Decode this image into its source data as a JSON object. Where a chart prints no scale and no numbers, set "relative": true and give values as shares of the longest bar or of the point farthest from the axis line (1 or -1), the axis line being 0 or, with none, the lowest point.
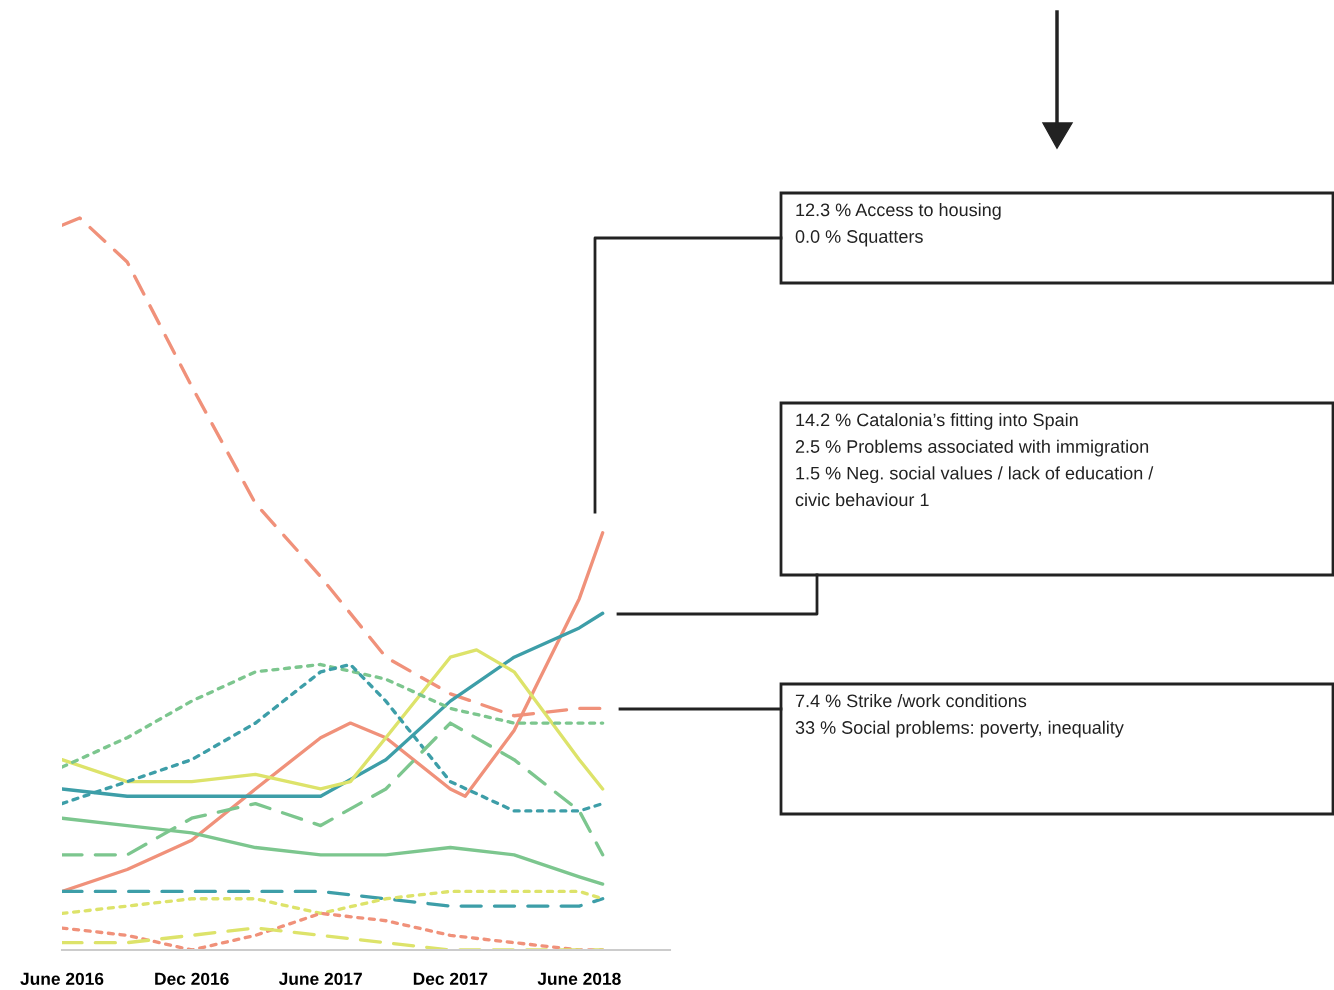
{
  "chart_data": {
    "type": "line",
    "relative": true,
    "grid": false,
    "legend": false,
    "xlim": [
      "2016-06-01",
      "2018-10-07"
    ],
    "xticks": [
      {
        "value": "2016-06",
        "label": "June 2016"
      },
      {
        "value": "2016-12",
        "label": "Dec 2016"
      },
      {
        "value": "2017-06",
        "label": "June 2017"
      },
      {
        "value": "2017-12",
        "label": "Dec 2017"
      },
      {
        "value": "2018-06",
        "label": "June 2018"
      }
    ],
    "tick_labels": "x",
    "series": [
      {
        "color": "#f0917a",
        "line_style": "dashed",
        "x": [
          "2016-06-01",
          "2016-06-26",
          "2016-09-01",
          "2016-12-01",
          "2017-03-01",
          "2017-06-01",
          "2017-09-01",
          "2017-12-01",
          "2018-03-01",
          "2018-06-01",
          "2018-07-04"
        ],
        "values": [
          0.99,
          1,
          0.94,
          0.77,
          0.61,
          0.51,
          0.4,
          0.35,
          0.32,
          0.33,
          0.33
        ]
      },
      {
        "color": "#f0917a",
        "line_style": "solid",
        "x": [
          "2016-06-01",
          "2016-09-01",
          "2016-12-01",
          "2017-03-01",
          "2017-06-01",
          "2017-07-13",
          "2017-09-01",
          "2017-12-01",
          "2017-12-22",
          "2018-03-01",
          "2018-06-01",
          "2018-07-04"
        ],
        "values": [
          0.08,
          0.11,
          0.15,
          0.22,
          0.29,
          0.31,
          0.29,
          0.22,
          0.21,
          0.3,
          0.48,
          0.57
        ]
      },
      {
        "color": "#3d9ea8",
        "line_style": "solid",
        "x": [
          "2016-06-01",
          "2016-09-01",
          "2016-12-01",
          "2017-03-01",
          "2017-06-01",
          "2017-09-01",
          "2017-12-01",
          "2018-03-01",
          "2018-06-01",
          "2018-07-04"
        ],
        "values": [
          0.22,
          0.21,
          0.21,
          0.21,
          0.21,
          0.26,
          0.34,
          0.4,
          0.44,
          0.46
        ]
      },
      {
        "color": "#dde36a",
        "line_style": "solid",
        "x": [
          "2016-06-01",
          "2016-09-01",
          "2016-12-01",
          "2017-03-01",
          "2017-06-01",
          "2017-07-13",
          "2017-09-01",
          "2017-12-01",
          "2018-01-07",
          "2018-03-01",
          "2018-06-01",
          "2018-07-04"
        ],
        "values": [
          0.26,
          0.23,
          0.23,
          0.24,
          0.22,
          0.23,
          0.29,
          0.4,
          0.41,
          0.38,
          0.26,
          0.22
        ]
      },
      {
        "color": "#7cc68e",
        "line_style": "dotted",
        "x": [
          "2016-06-01",
          "2016-09-01",
          "2016-12-01",
          "2017-03-01",
          "2017-06-01",
          "2017-09-01",
          "2017-12-01",
          "2018-03-01",
          "2018-06-01",
          "2018-07-04"
        ],
        "values": [
          0.25,
          0.29,
          0.34,
          0.38,
          0.39,
          0.37,
          0.33,
          0.31,
          0.31,
          0.31
        ]
      },
      {
        "color": "#3d9ea8",
        "line_style": "dotted",
        "x": [
          "2016-06-01",
          "2016-09-01",
          "2016-12-01",
          "2017-03-01",
          "2017-06-01",
          "2017-07-13",
          "2017-09-01",
          "2017-12-01",
          "2018-03-01",
          "2018-06-01",
          "2018-07-04"
        ],
        "values": [
          0.2,
          0.23,
          0.26,
          0.31,
          0.38,
          0.39,
          0.34,
          0.23,
          0.19,
          0.19,
          0.2
        ]
      },
      {
        "color": "#7cc68e",
        "line_style": "dashed",
        "x": [
          "2016-06-01",
          "2016-09-01",
          "2016-12-01",
          "2017-03-01",
          "2017-06-01",
          "2017-09-01",
          "2017-12-01",
          "2018-03-01",
          "2018-06-01",
          "2018-07-04"
        ],
        "values": [
          0.13,
          0.13,
          0.18,
          0.2,
          0.17,
          0.22,
          0.31,
          0.26,
          0.19,
          0.13
        ]
      },
      {
        "color": "#7cc68e",
        "line_style": "solid",
        "x": [
          "2016-06-01",
          "2016-09-01",
          "2016-12-01",
          "2017-03-01",
          "2017-06-01",
          "2017-09-01",
          "2017-12-01",
          "2018-03-01",
          "2018-06-01",
          "2018-07-04"
        ],
        "values": [
          0.18,
          0.17,
          0.16,
          0.14,
          0.13,
          0.13,
          0.14,
          0.13,
          0.1,
          0.09
        ]
      },
      {
        "color": "#3d9ea8",
        "line_style": "dashed",
        "x": [
          "2016-06-01",
          "2016-12-01",
          "2017-06-01",
          "2017-09-01",
          "2017-12-01",
          "2018-03-01",
          "2018-06-01",
          "2018-07-04"
        ],
        "values": [
          0.08,
          0.08,
          0.08,
          0.07,
          0.06,
          0.06,
          0.06,
          0.07
        ]
      },
      {
        "color": "#dde36a",
        "line_style": "dotted",
        "x": [
          "2016-06-01",
          "2016-09-01",
          "2016-12-01",
          "2017-03-01",
          "2017-06-01",
          "2017-09-01",
          "2017-12-01",
          "2018-03-01",
          "2018-06-01",
          "2018-07-04"
        ],
        "values": [
          0.05,
          0.06,
          0.07,
          0.07,
          0.05,
          0.07,
          0.08,
          0.08,
          0.08,
          0.07
        ]
      },
      {
        "color": "#f0917a",
        "line_style": "dotted",
        "x": [
          "2016-06-01",
          "2016-09-01",
          "2016-12-01",
          "2017-03-01",
          "2017-06-01",
          "2017-09-01",
          "2017-12-01",
          "2018-03-01",
          "2018-06-01",
          "2018-07-04"
        ],
        "values": [
          0.03,
          0.02,
          0.0,
          0.02,
          0.05,
          0.04,
          0.02,
          0.01,
          0.0,
          0.0
        ]
      },
      {
        "color": "#dde36a",
        "line_style": "dashed",
        "x": [
          "2016-06-01",
          "2016-09-01",
          "2016-12-01",
          "2017-03-01",
          "2017-06-01",
          "2017-09-01",
          "2017-12-01",
          "2018-03-01",
          "2018-06-01",
          "2018-07-04"
        ],
        "values": [
          0.01,
          0.01,
          0.02,
          0.03,
          0.02,
          0.01,
          0.0,
          0.0,
          0.0,
          0.0
        ]
      }
    ],
    "annotations": [
      "12.3 % Access to housing\n0.0 % Squatters",
      "14.2 % Catalonia’s fitting into Spain\n2.5 % Problems associated with immigration\n1.5 % Neg. social values / lack of education /\ncivic behaviour 1",
      "7.4 % Strike /work conditions\n33 % Social problems: poverty, inequality"
    ]
  }
}
